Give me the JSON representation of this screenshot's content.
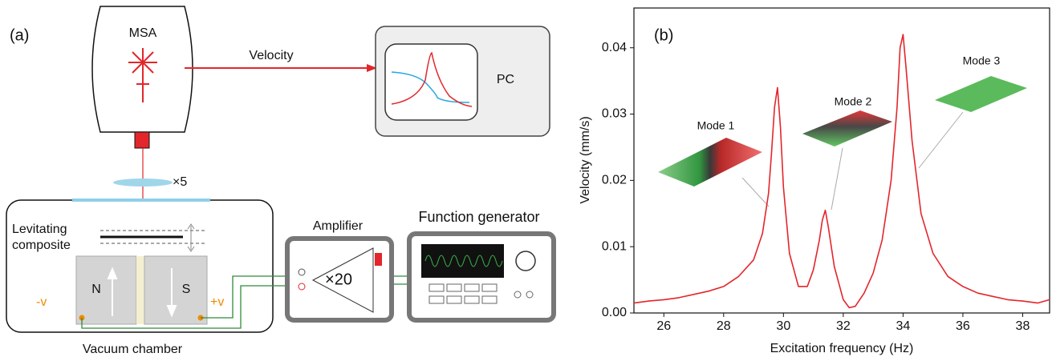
{
  "diagram": {
    "panel_label": "(a)",
    "msa": "MSA",
    "velocity": "Velocity",
    "pc": "PC",
    "lens": "×5",
    "levitating": "Levitating",
    "composite": "composite",
    "north": "N",
    "south": "S",
    "minus_v": "-v",
    "plus_v": "+v",
    "amplifier": "Amplifier",
    "gain": "×20",
    "function_generator": "Function generator",
    "vacuum_chamber": "Vacuum chamber"
  },
  "chart_data": {
    "type": "line",
    "panel_label": "(b)",
    "xlabel": "Excitation frequency (Hz)",
    "ylabel": "Velocity (mm/s)",
    "annotations": [
      "Mode 1",
      "Mode 2",
      "Mode 3"
    ],
    "x": [
      25,
      25.5,
      26,
      26.5,
      27,
      27.5,
      28,
      28.5,
      29,
      29.3,
      29.5,
      29.6,
      29.7,
      29.8,
      29.9,
      30.0,
      30.2,
      30.5,
      30.8,
      31.0,
      31.2,
      31.3,
      31.4,
      31.5,
      31.7,
      32.0,
      32.2,
      32.4,
      32.7,
      33.0,
      33.3,
      33.6,
      33.8,
      33.9,
      34.0,
      34.1,
      34.3,
      34.6,
      35,
      35.5,
      36,
      36.5,
      37,
      37.5,
      38,
      38.5,
      38.9
    ],
    "values": [
      0.0015,
      0.0018,
      0.002,
      0.0023,
      0.0028,
      0.0033,
      0.004,
      0.0055,
      0.008,
      0.012,
      0.018,
      0.024,
      0.031,
      0.034,
      0.028,
      0.019,
      0.009,
      0.004,
      0.004,
      0.0065,
      0.011,
      0.014,
      0.0155,
      0.013,
      0.007,
      0.002,
      0.0008,
      0.001,
      0.003,
      0.006,
      0.011,
      0.02,
      0.031,
      0.04,
      0.042,
      0.037,
      0.026,
      0.015,
      0.009,
      0.0055,
      0.004,
      0.003,
      0.0025,
      0.002,
      0.0018,
      0.0015,
      0.002
    ],
    "color": "#e3262b",
    "xlim": [
      25,
      38.9
    ],
    "ylim": [
      0,
      0.046
    ],
    "xticks": [
      26,
      28,
      30,
      32,
      34,
      36,
      38
    ],
    "yticks": [
      {
        "value": 0,
        "label": "0.00"
      },
      0.01,
      0.02,
      0.03,
      0.04
    ]
  }
}
